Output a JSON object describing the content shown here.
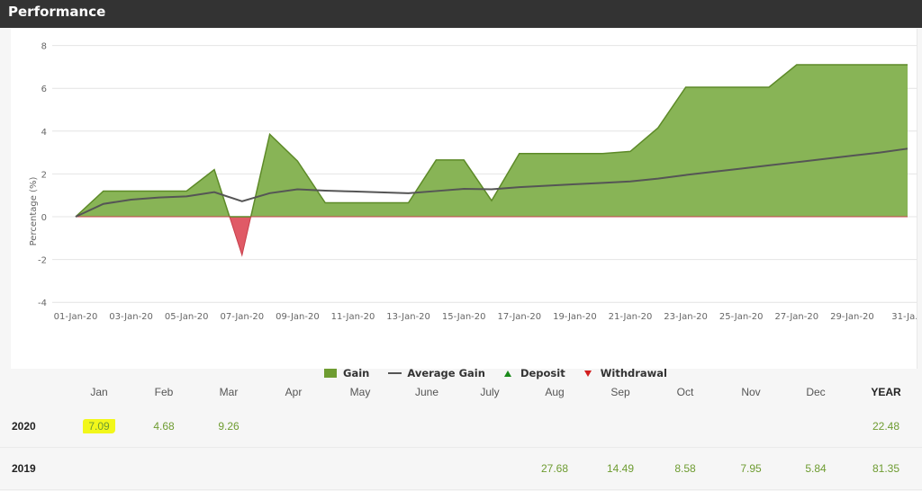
{
  "header": {
    "title": "Performance"
  },
  "chart_data": {
    "type": "area",
    "title": "",
    "xlabel": "",
    "ylabel": "Percentage (%)",
    "ylim": [
      -4,
      8
    ],
    "yticks": [
      8,
      6,
      4,
      2,
      0,
      -2,
      -4
    ],
    "grid": true,
    "legend_position": "bottom",
    "x": [
      "01-Jan-20",
      "02-Jan-20",
      "03-Jan-20",
      "04-Jan-20",
      "05-Jan-20",
      "06-Jan-20",
      "07-Jan-20",
      "08-Jan-20",
      "09-Jan-20",
      "10-Jan-20",
      "11-Jan-20",
      "12-Jan-20",
      "13-Jan-20",
      "14-Jan-20",
      "15-Jan-20",
      "16-Jan-20",
      "17-Jan-20",
      "18-Jan-20",
      "19-Jan-20",
      "20-Jan-20",
      "21-Jan-20",
      "22-Jan-20",
      "23-Jan-20",
      "24-Jan-20",
      "25-Jan-20",
      "26-Jan-20",
      "27-Jan-20",
      "28-Jan-20",
      "29-Jan-20",
      "30-Jan-20",
      "31-Jan-20"
    ],
    "xtick_labels": [
      "01-Jan-20",
      "03-Jan-20",
      "05-Jan-20",
      "07-Jan-20",
      "09-Jan-20",
      "11-Jan-20",
      "13-Jan-20",
      "15-Jan-20",
      "17-Jan-20",
      "19-Jan-20",
      "21-Jan-20",
      "23-Jan-20",
      "25-Jan-20",
      "27-Jan-20",
      "29-Jan-20",
      "31-Ja..."
    ],
    "series": [
      {
        "name": "Gain",
        "type": "area",
        "color": "#6e9c31",
        "negative_color": "#e05a66",
        "values": [
          0,
          1.2,
          1.2,
          1.2,
          1.2,
          2.2,
          -1.8,
          3.85,
          2.6,
          0.65,
          0.65,
          0.65,
          0.65,
          2.65,
          2.65,
          0.75,
          2.95,
          2.95,
          2.95,
          2.95,
          3.05,
          4.15,
          6.05,
          6.05,
          6.05,
          6.05,
          7.1,
          7.1,
          7.1,
          7.1,
          7.1
        ]
      },
      {
        "name": "Average Gain",
        "type": "line",
        "color": "#555555",
        "values": [
          0,
          0.6,
          0.8,
          0.9,
          0.95,
          1.15,
          0.72,
          1.1,
          1.28,
          1.22,
          1.18,
          1.14,
          1.1,
          1.2,
          1.3,
          1.28,
          1.38,
          1.45,
          1.52,
          1.58,
          1.65,
          1.78,
          1.95,
          2.1,
          2.25,
          2.4,
          2.55,
          2.7,
          2.85,
          3.0,
          3.18
        ]
      },
      {
        "name": "Deposit",
        "type": "marker",
        "color": "#1a8a1a",
        "values": []
      },
      {
        "name": "Withdrawal",
        "type": "marker",
        "color": "#d21e1e",
        "values": []
      }
    ]
  },
  "legend": {
    "gain": "Gain",
    "average_gain": "Average Gain",
    "deposit": "Deposit",
    "withdrawal": "Withdrawal"
  },
  "table": {
    "headers": [
      "Jan",
      "Feb",
      "Mar",
      "Apr",
      "May",
      "June",
      "July",
      "Aug",
      "Sep",
      "Oct",
      "Nov",
      "Dec",
      "YEAR"
    ],
    "rows": [
      {
        "year": "2020",
        "values": [
          "7.09",
          "4.68",
          "9.26",
          "",
          "",
          "",
          "",
          "",
          "",
          "",
          "",
          "",
          "22.48"
        ]
      },
      {
        "year": "2019",
        "values": [
          "",
          "",
          "",
          "",
          "",
          "",
          "",
          "27.68",
          "14.49",
          "8.58",
          "7.95",
          "5.84",
          "81.35"
        ]
      }
    ]
  }
}
